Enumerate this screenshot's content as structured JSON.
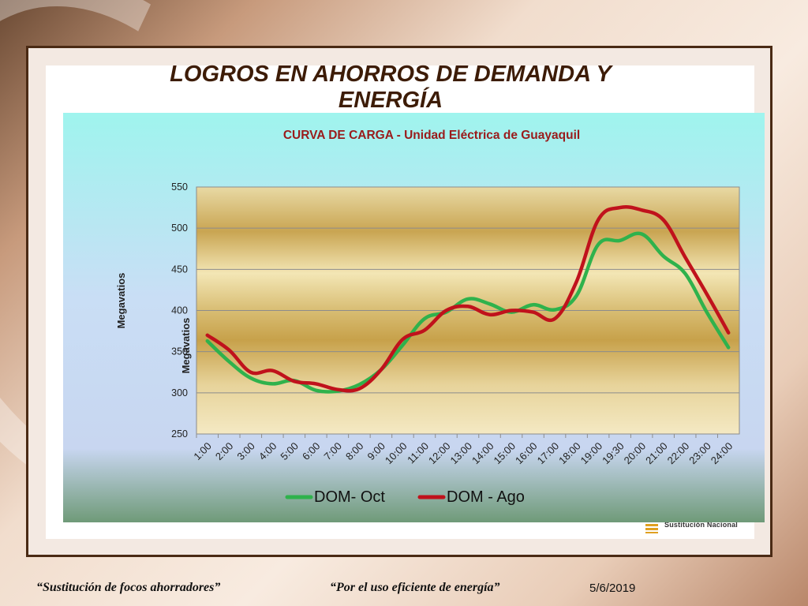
{
  "slide": {
    "title": "LOGROS EN AHORROS DE DEMANDA Y ENERGÍA",
    "logo_text": "Sustitución Nacional",
    "footer_left": "“Sustitución de focos ahorradores”",
    "footer_middle": "“Por el uso eficiente de energía”",
    "footer_date": "5/6/2019"
  },
  "chart_data": {
    "type": "line",
    "title": "CURVA DE CARGA -  Unidad Eléctrica de Guayaquil",
    "ylabel": "Megavatios",
    "ylabel_inner": "Megavatios",
    "ylim": [
      250,
      550
    ],
    "yticks": [
      250,
      300,
      350,
      400,
      450,
      500,
      550
    ],
    "categories": [
      "1:00",
      "2:00",
      "3:00",
      "4:00",
      "5:00",
      "6:00",
      "7:00",
      "8:00",
      "9:00",
      "10:00",
      "11:00",
      "12:00",
      "13:00",
      "14:00",
      "15:00",
      "16:00",
      "17:00",
      "18:00",
      "19:00",
      "19:30",
      "20:00",
      "21:00",
      "22:00",
      "23:00",
      "24:00"
    ],
    "series": [
      {
        "name": "DOM- Oct",
        "color": "#2fb24c",
        "values": [
          363,
          338,
          318,
          311,
          315,
          303,
          302,
          310,
          328,
          358,
          390,
          398,
          414,
          408,
          398,
          407,
          401,
          418,
          480,
          485,
          493,
          466,
          445,
          398,
          355
        ]
      },
      {
        "name": "DOM - Ago",
        "color": "#c0121c",
        "values": [
          370,
          352,
          325,
          327,
          314,
          311,
          304,
          305,
          328,
          365,
          376,
          400,
          405,
          395,
          400,
          398,
          390,
          435,
          510,
          525,
          522,
          510,
          465,
          420,
          373
        ]
      }
    ],
    "legend": "bottom",
    "grid": true
  }
}
